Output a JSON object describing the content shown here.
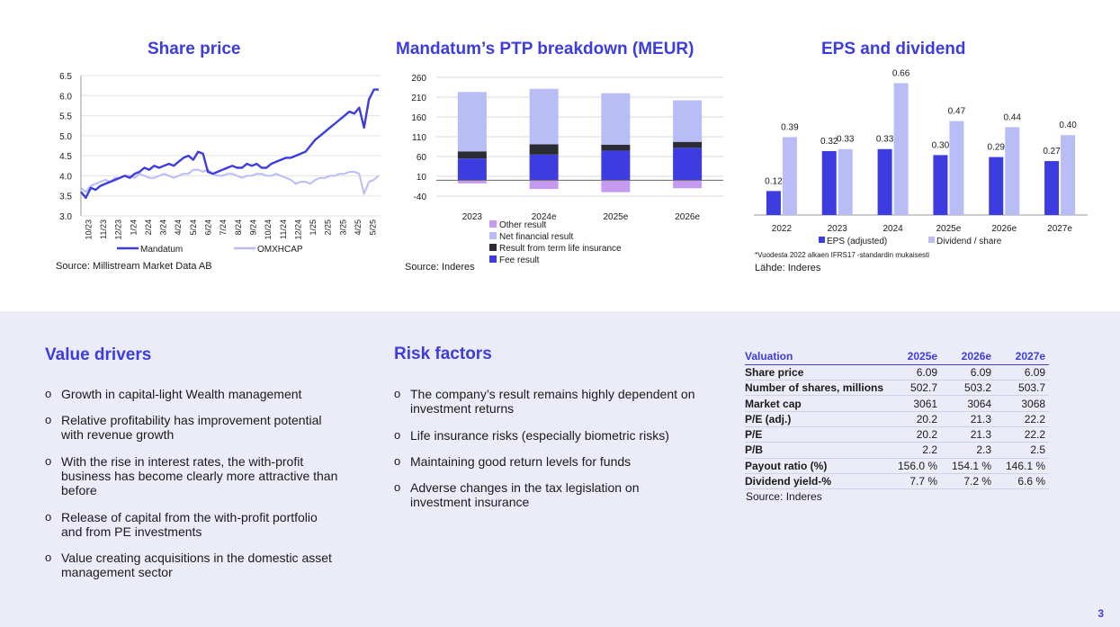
{
  "colors": {
    "accent": "#3c3ce0",
    "light": "#b8bdf5",
    "dark": "#2b2b33",
    "lilac": "#c59af0"
  },
  "chart_data": [
    {
      "type": "line",
      "title": "Share price",
      "x_ticks": [
        "10/23",
        "11/23",
        "12/23",
        "1/24",
        "2/24",
        "3/24",
        "4/24",
        "5/24",
        "6/24",
        "7/24",
        "8/24",
        "9/24",
        "10/24",
        "11/24",
        "12/24",
        "1/25",
        "2/25",
        "3/25",
        "4/25",
        "5/25"
      ],
      "y_ticks": [
        "3.0",
        "3.5",
        "4.0",
        "4.5",
        "5.0",
        "5.5",
        "6.0",
        "6.5"
      ],
      "ylim": [
        3.0,
        6.5
      ],
      "grid": true,
      "legend_position": "bottom",
      "series": [
        {
          "name": "Mandatum",
          "color": "#3c3ce0",
          "values": [
            3.6,
            3.45,
            3.7,
            3.65,
            3.75,
            3.8,
            3.85,
            3.9,
            3.95,
            4.0,
            3.95,
            4.05,
            4.1,
            4.2,
            4.15,
            4.25,
            4.2,
            4.25,
            4.3,
            4.25,
            4.35,
            4.45,
            4.5,
            4.4,
            4.6,
            4.55,
            4.1,
            4.05,
            4.1,
            4.15,
            4.2,
            4.25,
            4.2,
            4.2,
            4.3,
            4.25,
            4.3,
            4.2,
            4.2,
            4.3,
            4.35,
            4.4,
            4.45,
            4.45,
            4.5,
            4.55,
            4.6,
            4.75,
            4.9,
            5.0,
            5.1,
            5.2,
            5.3,
            5.4,
            5.5,
            5.6,
            5.55,
            5.7,
            5.2,
            5.9,
            6.15,
            6.15
          ]
        },
        {
          "name": "OMXHCAP",
          "color": "#b8bdf5",
          "values": [
            3.7,
            3.6,
            3.75,
            3.8,
            3.85,
            3.9,
            3.85,
            3.95,
            3.95,
            4.0,
            4.0,
            3.95,
            4.05,
            4.0,
            3.95,
            3.95,
            4.0,
            4.05,
            4.0,
            3.95,
            4.0,
            4.05,
            4.05,
            4.15,
            4.15,
            4.1,
            4.15,
            4.05,
            4.0,
            4.0,
            4.05,
            4.05,
            4.0,
            3.95,
            4.0,
            4.0,
            4.05,
            4.05,
            4.0,
            4.0,
            4.05,
            4.0,
            3.95,
            3.9,
            3.8,
            3.85,
            3.85,
            3.8,
            3.9,
            3.95,
            3.95,
            4.0,
            4.0,
            4.05,
            4.05,
            4.1,
            4.1,
            4.05,
            3.55,
            3.85,
            3.9,
            4.0
          ]
        }
      ],
      "source": "Source: Millistream Market Data AB"
    },
    {
      "type": "bar",
      "stacked": true,
      "title": "Mandatum’s PTP breakdown (MEUR)",
      "categories": [
        "2023",
        "2024e",
        "2025e",
        "2026e"
      ],
      "y_ticks": [
        "-40",
        "10",
        "60",
        "110",
        "160",
        "210",
        "260"
      ],
      "ylim": [
        -40,
        260
      ],
      "legend_position": "bottom",
      "series": [
        {
          "name": "Other result",
          "color": "#c59af0",
          "values": [
            -8,
            -22,
            -30,
            -20
          ]
        },
        {
          "name": "Net financial result",
          "color": "#b8bdf5",
          "values": [
            150,
            140,
            130,
            105
          ]
        },
        {
          "name": "Result from term life insurance",
          "color": "#2b2b33",
          "values": [
            18,
            26,
            15,
            15
          ]
        },
        {
          "name": "Fee result",
          "color": "#3c3ce0",
          "values": [
            55,
            65,
            75,
            82
          ]
        }
      ],
      "source": "Source: Inderes"
    },
    {
      "type": "bar",
      "title": "EPS and dividend",
      "categories": [
        "2022",
        "2023",
        "2024",
        "2025e",
        "2026e",
        "2027e"
      ],
      "ylim": [
        0,
        0.7
      ],
      "legend_position": "bottom",
      "series": [
        {
          "name": "EPS (adjusted)",
          "color": "#3c3ce0",
          "values": [
            0.12,
            0.32,
            0.33,
            0.3,
            0.29,
            0.27
          ],
          "labels": [
            "0.12",
            "0.32",
            "0.33",
            "0.30",
            "0.29",
            "0.27"
          ]
        },
        {
          "name": "Dividend / share",
          "color": "#b8bdf5",
          "values": [
            0.39,
            0.33,
            0.66,
            0.47,
            0.44,
            0.4
          ],
          "labels": [
            "0.39",
            "0.33",
            "0.66",
            "0.47",
            "0.44",
            "0.40"
          ]
        }
      ],
      "footnote": "*Vuodesta 2022 alkaen IFRS17 -standardin mukaisesti",
      "source": "Lähde: Inderes"
    }
  ],
  "value_drivers": {
    "title": "Value drivers",
    "items": [
      "Growth in capital-light Wealth management",
      "Relative profitability has improvement potential with revenue growth",
      "With the rise in interest rates, the with-profit business has become clearly more attractive than before",
      "Release of capital from the with-profit portfolio and from PE investments",
      "Value creating acquisitions in the domestic asset management sector"
    ]
  },
  "risk_factors": {
    "title": "Risk factors",
    "items": [
      "The company’s result remains highly dependent on investment returns",
      "Life insurance risks (especially biometric risks)",
      "Maintaining good return levels for funds",
      "Adverse changes in the tax legislation on investment insurance"
    ]
  },
  "valuation": {
    "header": [
      "Valuation",
      "2025e",
      "2026e",
      "2027e"
    ],
    "rows": [
      [
        "Share price",
        "6.09",
        "6.09",
        "6.09"
      ],
      [
        "Number of shares, millions",
        "502.7",
        "503.2",
        "503.7"
      ],
      [
        "Market cap",
        "3061",
        "3064",
        "3068"
      ],
      [
        "P/E (adj.)",
        "20.2",
        "21.3",
        "22.2"
      ],
      [
        "P/E",
        "20.2",
        "21.3",
        "22.2"
      ],
      [
        "P/B",
        "2.2",
        "2.3",
        "2.5"
      ],
      [
        "Payout ratio (%)",
        "156.0 %",
        "154.1 %",
        "146.1 %"
      ],
      [
        "Dividend yield-%",
        "7.7 %",
        "7.2 %",
        "6.6 %"
      ]
    ],
    "source": "Source: Inderes"
  },
  "page_number": "3"
}
